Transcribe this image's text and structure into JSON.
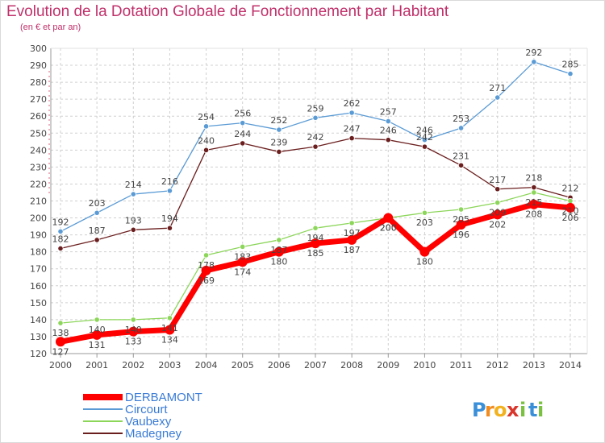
{
  "chart_data": {
    "type": "line",
    "title": "Evolution de la Dotation Globale de Fonctionnement par Habitant",
    "subtitle": "(en € et par an)",
    "xlabel": "",
    "ylabel": "",
    "categories": [
      "2000",
      "2001",
      "2002",
      "2003",
      "2004",
      "2005",
      "2006",
      "2007",
      "2008",
      "2009",
      "2010",
      "2011",
      "2012",
      "2013",
      "2014"
    ],
    "ylim": [
      120,
      300
    ],
    "yticks": [
      120,
      130,
      140,
      150,
      160,
      170,
      180,
      190,
      200,
      210,
      220,
      230,
      240,
      250,
      260,
      270,
      280,
      290,
      300
    ],
    "grid": true,
    "legend_position": "bottom-left",
    "series": [
      {
        "name": "DERBAMONT",
        "color": "#ff0000",
        "values": [
          127,
          131,
          133,
          134,
          169,
          174,
          180,
          185,
          187,
          200,
          180,
          196,
          202,
          208,
          206
        ]
      },
      {
        "name": "Circourt",
        "color": "#5b9bd5",
        "values": [
          192,
          203,
          214,
          216,
          254,
          256,
          252,
          259,
          262,
          257,
          246,
          253,
          271,
          292,
          285
        ]
      },
      {
        "name": "Vaubexy",
        "color": "#8cd65a",
        "values": [
          138,
          140,
          140,
          141,
          178,
          183,
          187,
          194,
          197,
          200,
          203,
          205,
          209,
          215,
          210
        ]
      },
      {
        "name": "Madegney",
        "color": "#6b1e1e",
        "values": [
          182,
          187,
          193,
          194,
          240,
          244,
          239,
          242,
          247,
          246,
          242,
          231,
          217,
          218,
          212
        ]
      }
    ]
  },
  "brand": {
    "letters": [
      "P",
      "r",
      "o",
      "x",
      "i",
      "t",
      "i"
    ],
    "colors": [
      "#3a8fd9",
      "#f28c1e",
      "#f2b21e",
      "#d9362b",
      "#7ac142",
      "#3a8fd9",
      "#7ac142"
    ]
  }
}
